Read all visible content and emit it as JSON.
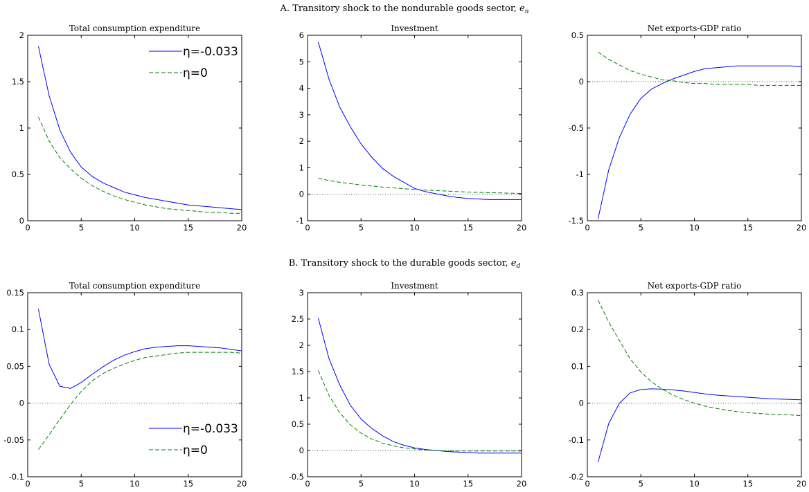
{
  "section_titles": {
    "A": "A. Transitory shock to the nondurable goods sector, e_n",
    "B": "B. Transitory shock to the durable goods sector, e_d"
  },
  "colors": {
    "eta_neg": "#0000ff",
    "eta_zero": "#008000",
    "zero_line": "#000000",
    "axes": "#000000"
  },
  "chart_data": [
    {
      "type": "line",
      "section": "A",
      "title": "Total consumption expenditure",
      "xlim": [
        0,
        20
      ],
      "ylim": [
        0,
        2
      ],
      "xticks": [
        0,
        5,
        10,
        15,
        20
      ],
      "yticks": [
        0,
        0.5,
        1,
        1.5,
        2
      ],
      "xticklabels": [
        "0",
        "5",
        "10",
        "15",
        "20"
      ],
      "yticklabels": [
        "0",
        "0.5",
        "1",
        "1.5",
        "2"
      ],
      "legend": "top-right",
      "grid": false,
      "zero_line": false,
      "x": [
        1,
        2,
        3,
        4,
        5,
        6,
        7,
        8,
        9,
        10,
        11,
        12,
        13,
        14,
        15,
        16,
        17,
        18,
        19,
        20
      ],
      "series": [
        {
          "name": "η=-0.033",
          "style": "solid",
          "values": [
            1.88,
            1.35,
            0.98,
            0.74,
            0.58,
            0.48,
            0.41,
            0.36,
            0.31,
            0.28,
            0.25,
            0.23,
            0.21,
            0.19,
            0.17,
            0.16,
            0.15,
            0.14,
            0.13,
            0.12
          ]
        },
        {
          "name": "η=0",
          "style": "dashed",
          "values": [
            1.12,
            0.86,
            0.68,
            0.56,
            0.46,
            0.38,
            0.32,
            0.27,
            0.23,
            0.2,
            0.17,
            0.15,
            0.13,
            0.12,
            0.11,
            0.1,
            0.09,
            0.09,
            0.08,
            0.08
          ]
        }
      ]
    },
    {
      "type": "line",
      "section": "A",
      "title": "Investment",
      "xlim": [
        0,
        20
      ],
      "ylim": [
        -1,
        6
      ],
      "xticks": [
        0,
        5,
        10,
        15,
        20
      ],
      "yticks": [
        -1,
        0,
        1,
        2,
        3,
        4,
        5,
        6
      ],
      "xticklabels": [
        "0",
        "5",
        "10",
        "15",
        "20"
      ],
      "yticklabels": [
        "-1",
        "0",
        "1",
        "2",
        "3",
        "4",
        "5",
        "6"
      ],
      "legend": "none",
      "grid": false,
      "zero_line": true,
      "x": [
        1,
        2,
        3,
        4,
        5,
        6,
        7,
        8,
        9,
        10,
        11,
        12,
        13,
        14,
        15,
        16,
        17,
        18,
        19,
        20
      ],
      "series": [
        {
          "name": "η=-0.033",
          "style": "solid",
          "values": [
            5.75,
            4.35,
            3.3,
            2.55,
            1.9,
            1.4,
            0.98,
            0.68,
            0.45,
            0.22,
            0.1,
            0.02,
            -0.06,
            -0.12,
            -0.16,
            -0.18,
            -0.2,
            -0.2,
            -0.2,
            -0.2
          ]
        },
        {
          "name": "η=0",
          "style": "dashed",
          "values": [
            0.6,
            0.52,
            0.45,
            0.4,
            0.35,
            0.31,
            0.27,
            0.24,
            0.21,
            0.18,
            0.16,
            0.14,
            0.12,
            0.1,
            0.08,
            0.07,
            0.06,
            0.05,
            0.04,
            0.03
          ]
        }
      ]
    },
    {
      "type": "line",
      "section": "A",
      "title": "Net exports-GDP ratio",
      "xlim": [
        0,
        20
      ],
      "ylim": [
        -1.5,
        0.5
      ],
      "xticks": [
        0,
        5,
        10,
        15,
        20
      ],
      "yticks": [
        -1.5,
        -1,
        -0.5,
        0,
        0.5
      ],
      "xticklabels": [
        "0",
        "5",
        "10",
        "15",
        "20"
      ],
      "yticklabels": [
        "-1.5",
        "-1",
        "-0.5",
        "0",
        "0.5"
      ],
      "legend": "none",
      "grid": false,
      "zero_line": true,
      "x": [
        1,
        2,
        3,
        4,
        5,
        6,
        7,
        8,
        9,
        10,
        11,
        12,
        13,
        14,
        15,
        16,
        17,
        18,
        19,
        20
      ],
      "series": [
        {
          "name": "η=-0.033",
          "style": "solid",
          "values": [
            -1.48,
            -0.95,
            -0.6,
            -0.35,
            -0.18,
            -0.08,
            -0.02,
            0.03,
            0.07,
            0.11,
            0.14,
            0.15,
            0.16,
            0.17,
            0.17,
            0.17,
            0.17,
            0.17,
            0.17,
            0.16
          ]
        },
        {
          "name": "η=0",
          "style": "dashed",
          "values": [
            0.32,
            0.24,
            0.18,
            0.12,
            0.08,
            0.05,
            0.02,
            0.01,
            -0.01,
            -0.02,
            -0.02,
            -0.03,
            -0.03,
            -0.03,
            -0.03,
            -0.04,
            -0.04,
            -0.04,
            -0.04,
            -0.04
          ]
        }
      ]
    },
    {
      "type": "line",
      "section": "B",
      "title": "Total consumption expenditure",
      "xlim": [
        0,
        20
      ],
      "ylim": [
        -0.1,
        0.15
      ],
      "xticks": [
        0,
        5,
        10,
        15,
        20
      ],
      "yticks": [
        -0.1,
        -0.05,
        0,
        0.05,
        0.1,
        0.15
      ],
      "xticklabels": [
        "0",
        "5",
        "10",
        "15",
        "20"
      ],
      "yticklabels": [
        "-0.1",
        "-0.05",
        "0",
        "0.05",
        "0.1",
        "0.15"
      ],
      "legend": "bottom-right",
      "grid": false,
      "zero_line": true,
      "x": [
        1,
        2,
        3,
        4,
        5,
        6,
        7,
        8,
        9,
        10,
        11,
        12,
        13,
        14,
        15,
        16,
        17,
        18,
        19,
        20
      ],
      "series": [
        {
          "name": "η=-0.033",
          "style": "solid",
          "values": [
            0.128,
            0.053,
            0.023,
            0.02,
            0.028,
            0.039,
            0.049,
            0.058,
            0.065,
            0.07,
            0.074,
            0.076,
            0.077,
            0.078,
            0.078,
            0.077,
            0.076,
            0.075,
            0.073,
            0.071
          ]
        },
        {
          "name": "η=0",
          "style": "dashed",
          "values": [
            -0.063,
            -0.043,
            -0.022,
            -0.002,
            0.016,
            0.03,
            0.04,
            0.047,
            0.053,
            0.058,
            0.062,
            0.064,
            0.066,
            0.068,
            0.069,
            0.069,
            0.069,
            0.069,
            0.069,
            0.068
          ]
        }
      ]
    },
    {
      "type": "line",
      "section": "B",
      "title": "Investment",
      "xlim": [
        0,
        20
      ],
      "ylim": [
        -0.5,
        3
      ],
      "xticks": [
        0,
        5,
        10,
        15,
        20
      ],
      "yticks": [
        -0.5,
        0,
        0.5,
        1,
        1.5,
        2,
        2.5,
        3
      ],
      "xticklabels": [
        "0",
        "5",
        "10",
        "15",
        "20"
      ],
      "yticklabels": [
        "-0.5",
        "0",
        "0.5",
        "1",
        "1.5",
        "2",
        "2.5",
        "3"
      ],
      "legend": "none",
      "grid": false,
      "zero_line": true,
      "x": [
        1,
        2,
        3,
        4,
        5,
        6,
        7,
        8,
        9,
        10,
        11,
        12,
        13,
        14,
        15,
        16,
        17,
        18,
        19,
        20
      ],
      "series": [
        {
          "name": "η=-0.033",
          "style": "solid",
          "values": [
            2.52,
            1.75,
            1.25,
            0.86,
            0.6,
            0.42,
            0.28,
            0.17,
            0.1,
            0.05,
            0.02,
            0.0,
            -0.02,
            -0.03,
            -0.04,
            -0.05,
            -0.05,
            -0.05,
            -0.05,
            -0.05
          ]
        },
        {
          "name": "η=0",
          "style": "dashed",
          "values": [
            1.52,
            1.05,
            0.72,
            0.49,
            0.33,
            0.22,
            0.14,
            0.09,
            0.05,
            0.03,
            0.01,
            0.0,
            -0.01,
            -0.01,
            -0.01,
            -0.01,
            -0.01,
            -0.01,
            -0.01,
            -0.01
          ]
        }
      ]
    },
    {
      "type": "line",
      "section": "B",
      "title": "Net exports-GDP ratio",
      "xlim": [
        0,
        20
      ],
      "ylim": [
        -0.2,
        0.3
      ],
      "xticks": [
        0,
        5,
        10,
        15,
        20
      ],
      "yticks": [
        -0.2,
        -0.1,
        0,
        0.1,
        0.2,
        0.3
      ],
      "xticklabels": [
        "0",
        "5",
        "10",
        "15",
        "20"
      ],
      "yticklabels": [
        "-0.2",
        "-0.1",
        "0",
        "0.1",
        "0.2",
        "0.3"
      ],
      "legend": "none",
      "grid": false,
      "zero_line": true,
      "x": [
        1,
        2,
        3,
        4,
        5,
        6,
        7,
        8,
        9,
        10,
        11,
        12,
        13,
        14,
        15,
        16,
        17,
        18,
        19,
        20
      ],
      "series": [
        {
          "name": "η=-0.033",
          "style": "solid",
          "values": [
            -0.16,
            -0.055,
            0.0,
            0.028,
            0.037,
            0.039,
            0.038,
            0.036,
            0.033,
            0.029,
            0.025,
            0.022,
            0.02,
            0.018,
            0.016,
            0.014,
            0.012,
            0.011,
            0.01,
            0.009
          ]
        },
        {
          "name": "η=0",
          "style": "dashed",
          "values": [
            0.28,
            0.22,
            0.17,
            0.12,
            0.085,
            0.058,
            0.038,
            0.022,
            0.01,
            0.0,
            -0.008,
            -0.014,
            -0.019,
            -0.023,
            -0.026,
            -0.028,
            -0.03,
            -0.031,
            -0.032,
            -0.034
          ]
        }
      ]
    }
  ]
}
